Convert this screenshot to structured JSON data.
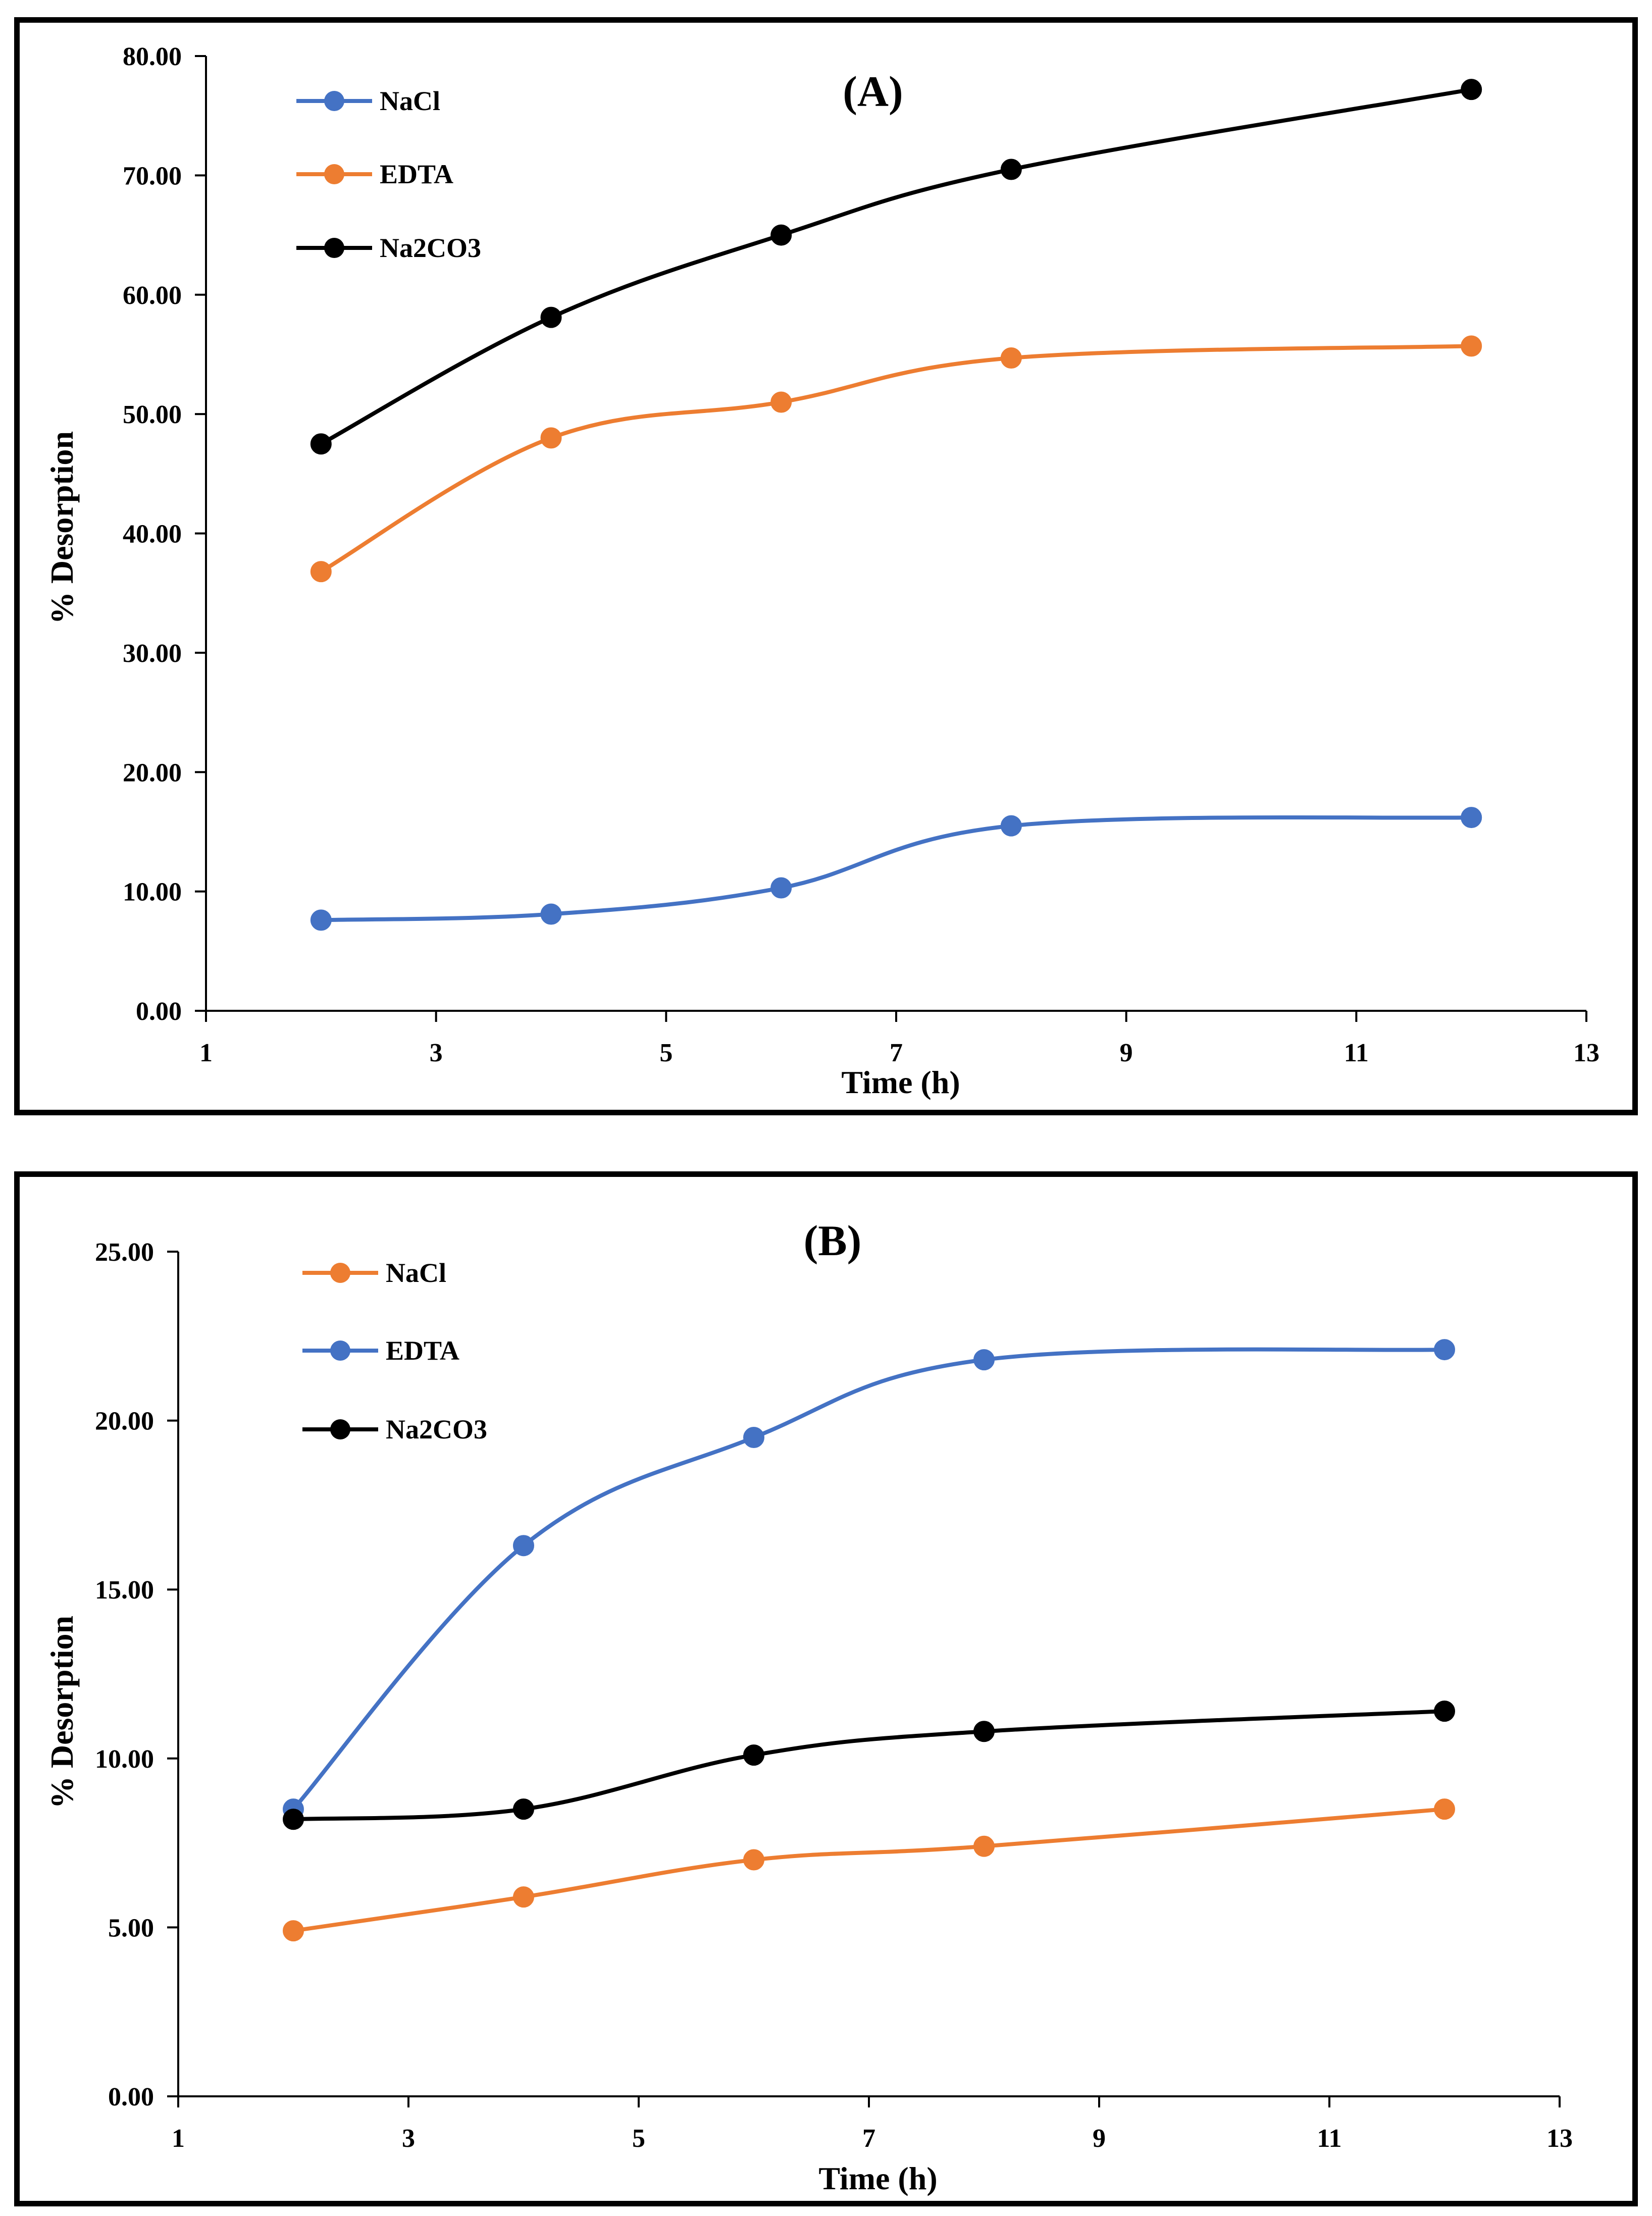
{
  "chart_data": [
    {
      "type": "line",
      "title": "(A)",
      "xlabel": "Time (h)",
      "ylabel": "% Desorption",
      "xlim": [
        1,
        13
      ],
      "ylim": [
        0,
        80
      ],
      "xticks": [
        "1",
        "3",
        "5",
        "7",
        "9",
        "11",
        "13"
      ],
      "yticks": [
        "0.00",
        "10.00",
        "20.00",
        "30.00",
        "40.00",
        "50.00",
        "60.00",
        "70.00",
        "80.00"
      ],
      "legend_position": "top-left",
      "grid": false,
      "series": [
        {
          "name": "NaCl",
          "color": "#4472C4",
          "x": [
            2,
            4,
            6,
            8,
            12
          ],
          "y": [
            7.6,
            8.1,
            10.3,
            15.5,
            16.2
          ]
        },
        {
          "name": "EDTA",
          "color": "#ED7D31",
          "x": [
            2,
            4,
            6,
            8,
            12
          ],
          "y": [
            36.8,
            48.0,
            51.0,
            54.7,
            55.7
          ]
        },
        {
          "name": "Na2CO3",
          "color": "#000000",
          "x": [
            2,
            4,
            6,
            8,
            12
          ],
          "y": [
            47.5,
            58.1,
            65.0,
            70.5,
            77.2
          ]
        }
      ]
    },
    {
      "type": "line",
      "title": "(B)",
      "xlabel": "Time (h)",
      "ylabel": "% Desorption",
      "xlim": [
        1,
        13
      ],
      "ylim": [
        0,
        25
      ],
      "xticks": [
        "1",
        "3",
        "5",
        "7",
        "9",
        "11",
        "13"
      ],
      "yticks": [
        "0.00",
        "5.00",
        "10.00",
        "15.00",
        "20.00",
        "25.00"
      ],
      "legend_position": "top-left",
      "grid": false,
      "series": [
        {
          "name": "NaCl",
          "color": "#ED7D31",
          "x": [
            2,
            4,
            6,
            8,
            12
          ],
          "y": [
            4.9,
            5.9,
            7.0,
            7.4,
            8.5
          ]
        },
        {
          "name": "EDTA",
          "color": "#4472C4",
          "x": [
            2,
            4,
            6,
            8,
            12
          ],
          "y": [
            8.5,
            16.3,
            19.5,
            21.8,
            22.1
          ]
        },
        {
          "name": "Na2CO3",
          "color": "#000000",
          "x": [
            2,
            4,
            6,
            8,
            12
          ],
          "y": [
            8.2,
            8.5,
            10.1,
            10.8,
            11.4
          ]
        }
      ]
    }
  ]
}
